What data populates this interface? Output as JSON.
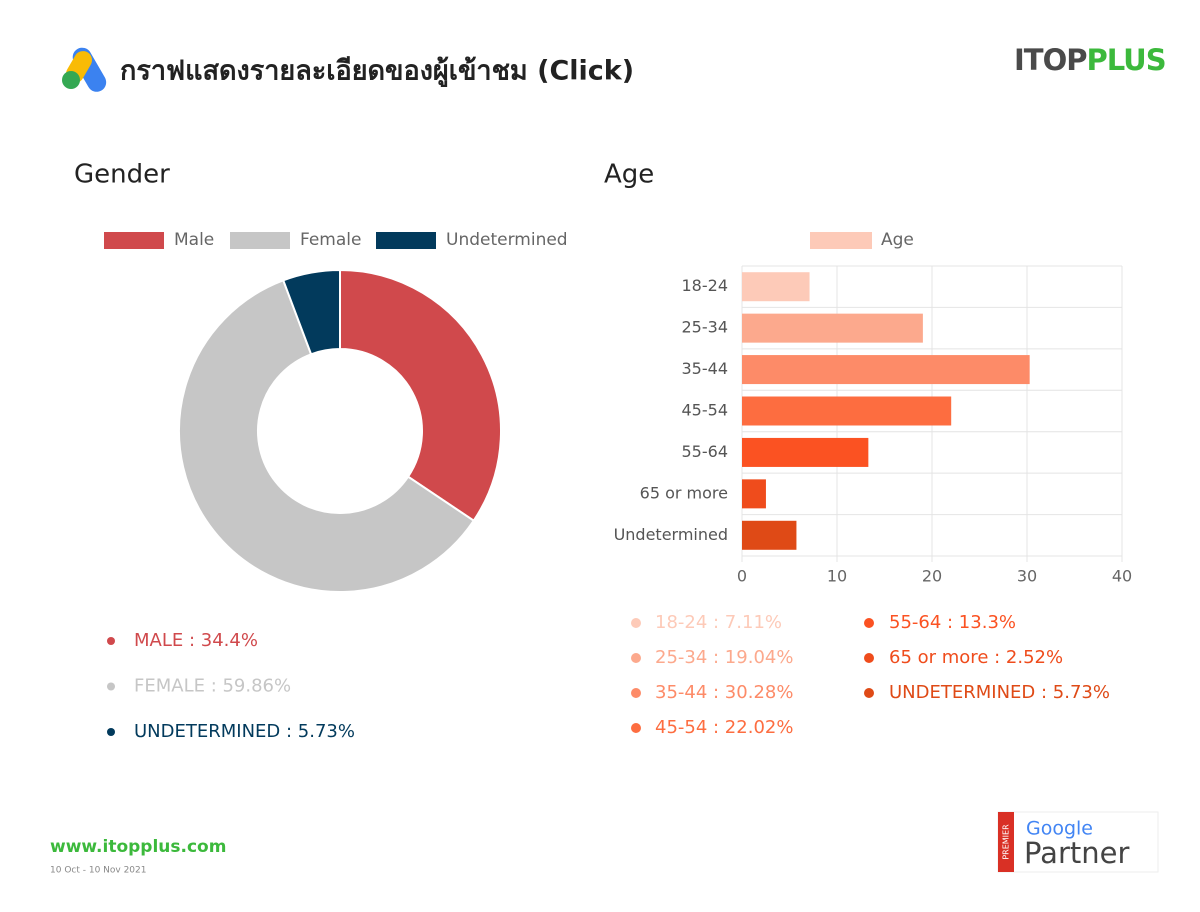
{
  "header": {
    "title": "กราฟแสดงรายละเอียดของผู้เข้าชม (Click)",
    "brand_parts": [
      "ITOP",
      "PLUS"
    ]
  },
  "chart_data": [
    {
      "type": "pie",
      "title": "Gender",
      "donut": true,
      "legend": "top",
      "categories": [
        "Male",
        "Female",
        "Undetermined"
      ],
      "values": [
        34.4,
        59.86,
        5.73
      ],
      "value_labels": [
        "MALE : 34.4%",
        "FEMALE : 59.86%",
        "UNDETERMINED : 5.73%"
      ],
      "colors": [
        "#d0494c",
        "#c6c6c6",
        "#023a5c"
      ]
    },
    {
      "type": "bar",
      "title": "Age",
      "orientation": "horizontal",
      "legend": "top",
      "grid": true,
      "categories": [
        "18-24",
        "25-34",
        "35-44",
        "45-54",
        "55-64",
        "65 or more",
        "Undetermined"
      ],
      "series": [
        {
          "name": "Age",
          "color": "#fdcab8",
          "values": [
            7.11,
            19.04,
            30.28,
            22.02,
            13.3,
            2.52,
            5.73
          ]
        }
      ],
      "value_labels": [
        "18-24 : 7.11%",
        "25-34 : 19.04%",
        "35-44 : 30.28%",
        "45-54 : 22.02%",
        "55-64 : 13.3%",
        "65 or more : 2.52%",
        "UNDETERMINED : 5.73%"
      ],
      "colors": [
        "#fdcab8",
        "#fca98d",
        "#fd8b68",
        "#fd6d40",
        "#fb5222",
        "#ef4c1c",
        "#df4a16"
      ],
      "xlim": [
        0,
        40
      ],
      "xticks": [
        0,
        10,
        20,
        30,
        40
      ]
    }
  ],
  "footer": {
    "website": "www.itopplus.com",
    "date": "10 Oct - 10 Nov 2021"
  },
  "badge": {
    "tier": "PREMIER",
    "brand": "Google",
    "program": "Partner"
  }
}
